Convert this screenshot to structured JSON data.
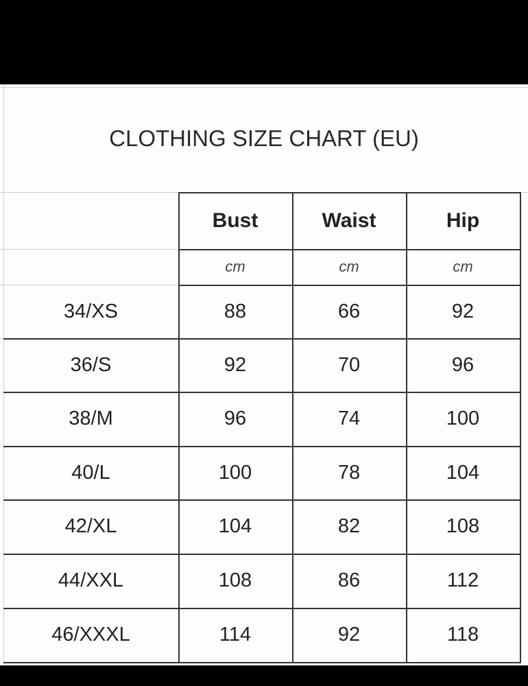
{
  "title": "CLOTHING SIZE CHART (EU)",
  "columns": [
    "Bust",
    "Waist",
    "Hip"
  ],
  "units": [
    "cm",
    "cm",
    "cm"
  ],
  "rows": [
    {
      "size": "34/XS",
      "values": [
        "88",
        "66",
        "92"
      ]
    },
    {
      "size": "36/S",
      "values": [
        "92",
        "70",
        "96"
      ]
    },
    {
      "size": "38/M",
      "values": [
        "96",
        "74",
        "100"
      ]
    },
    {
      "size": "40/L",
      "values": [
        "100",
        "78",
        "104"
      ]
    },
    {
      "size": "42/XL",
      "values": [
        "104",
        "82",
        "108"
      ]
    },
    {
      "size": "44/XXL",
      "values": [
        "108",
        "86",
        "112"
      ]
    },
    {
      "size": "46/XXXL",
      "values": [
        "114",
        "92",
        "118"
      ]
    }
  ]
}
